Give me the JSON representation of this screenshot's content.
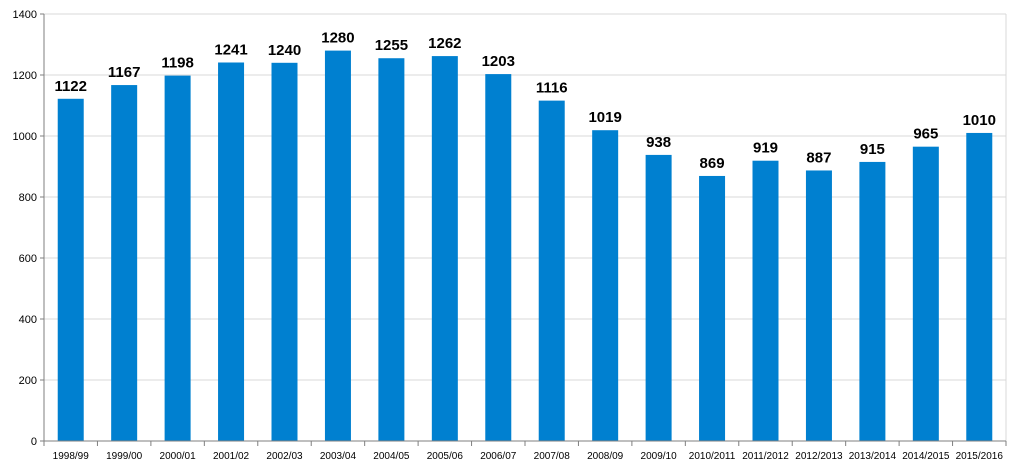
{
  "chart_data": {
    "type": "bar",
    "categories": [
      "1998/99",
      "1999/00",
      "2000/01",
      "2001/02",
      "2002/03",
      "2003/04",
      "2004/05",
      "2005/06",
      "2006/07",
      "2007/08",
      "2008/09",
      "2009/10",
      "2010/2011",
      "2011/2012",
      "2012/2013",
      "2013/2014",
      "2014/2015",
      "2015/2016"
    ],
    "values": [
      1122,
      1167,
      1198,
      1241,
      1240,
      1280,
      1255,
      1262,
      1203,
      1116,
      1019,
      938,
      869,
      919,
      887,
      915,
      965,
      1010
    ],
    "ylim": [
      0,
      1400
    ],
    "yticks": [
      0,
      200,
      400,
      600,
      800,
      1000,
      1200,
      1400
    ],
    "grid": true,
    "bar_color": "#0080D0",
    "title": "",
    "xlabel": "",
    "ylabel": ""
  }
}
